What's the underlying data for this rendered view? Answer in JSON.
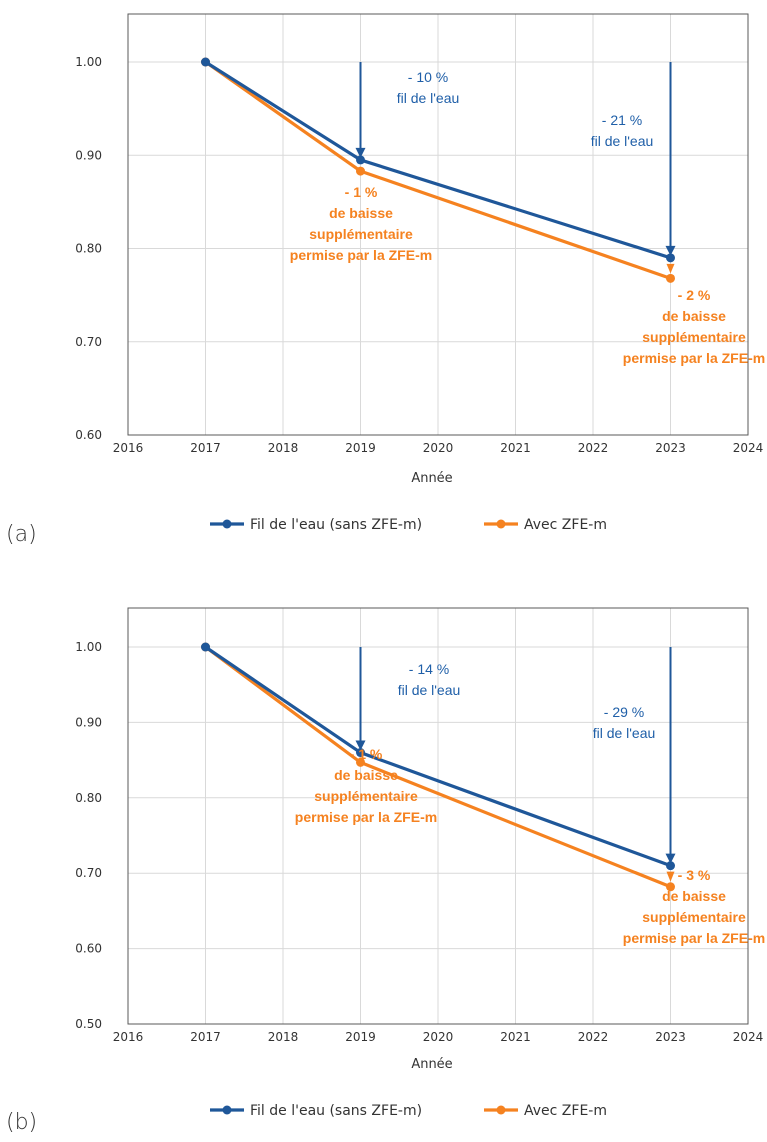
{
  "colors": {
    "series_blue": "#1f5799",
    "series_orange": "#f58220",
    "annotation_blue": "#1f5fa8",
    "grid": "#d9d9d9",
    "frame": "#595959"
  },
  "panels": [
    {
      "label": "(a)"
    },
    {
      "label": "(b)"
    }
  ],
  "chart_data": [
    {
      "type": "line",
      "title": "",
      "xlabel": "Année",
      "ylabel": "",
      "xlim": [
        2016,
        2024
      ],
      "ylim": [
        0.6,
        1.05
      ],
      "x_ticks": [
        "2016",
        "2017",
        "2018",
        "2019",
        "2020",
        "2021",
        "2022",
        "2023",
        "2024"
      ],
      "y_ticks": [
        "1.00",
        "0.90",
        "0.80",
        "0.70",
        "0.60"
      ],
      "grid": true,
      "legend_position": "bottom",
      "series": [
        {
          "name": "Fil de l'eau (sans ZFE-m)",
          "x": [
            2017,
            2019,
            2023
          ],
          "values": [
            1.0,
            0.895,
            0.79
          ]
        },
        {
          "name": "Avec ZFE-m",
          "x": [
            2017,
            2019,
            2023
          ],
          "values": [
            1.0,
            0.883,
            0.768
          ]
        }
      ],
      "annotations": {
        "a2019_blue": [
          "- 10 %",
          "fil de l'eau"
        ],
        "a2023_blue": [
          "- 21 %",
          "fil de l'eau"
        ],
        "a2019_orange": [
          "- 1 %",
          "de baisse",
          "supplémentaire",
          "permise par la ZFE-m"
        ],
        "a2023_orange": [
          "- 2 %",
          "de baisse",
          "supplémentaire",
          "permise par la ZFE-m"
        ]
      }
    },
    {
      "type": "line",
      "title": "",
      "xlabel": "Année",
      "ylabel": "",
      "xlim": [
        2016,
        2024
      ],
      "ylim": [
        0.5,
        1.05
      ],
      "x_ticks": [
        "2016",
        "2017",
        "2018",
        "2019",
        "2020",
        "2021",
        "2022",
        "2023",
        "2024"
      ],
      "y_ticks": [
        "1.00",
        "0.90",
        "0.80",
        "0.70",
        "0.60",
        "0.50"
      ],
      "grid": true,
      "legend_position": "bottom",
      "series": [
        {
          "name": "Fil de l'eau (sans ZFE-m)",
          "x": [
            2017,
            2019,
            2023
          ],
          "values": [
            1.0,
            0.86,
            0.71
          ]
        },
        {
          "name": "Avec ZFE-m",
          "x": [
            2017,
            2019,
            2023
          ],
          "values": [
            1.0,
            0.847,
            0.682
          ]
        }
      ],
      "annotations": {
        "a2019_blue": [
          "- 14 %",
          "fil de l'eau"
        ],
        "a2023_blue": [
          "- 29 %",
          "fil de l'eau"
        ],
        "a2019_orange": [
          "- 1 %",
          "de baisse",
          "supplémentaire",
          "permise par la ZFE-m"
        ],
        "a2023_orange": [
          "- 3 %",
          "de baisse",
          "supplémentaire",
          "permise par la ZFE-m"
        ]
      }
    }
  ]
}
